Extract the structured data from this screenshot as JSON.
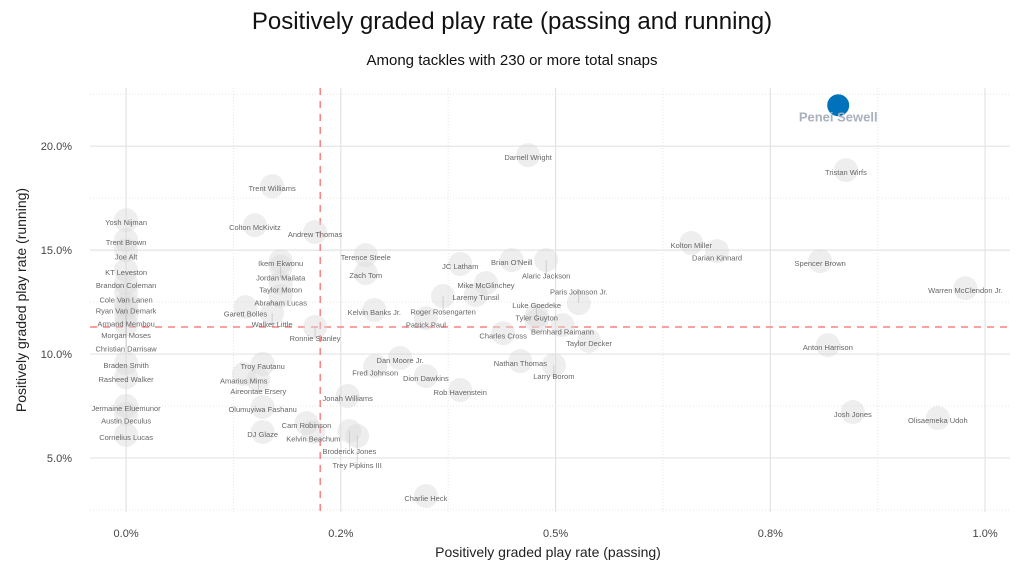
{
  "title": "Positively graded play rate (passing and running)",
  "subtitle": "Among tackles with 230 or more total snaps",
  "chart_data": {
    "type": "scatter",
    "title": "Positively graded play rate (passing and running)",
    "subtitle": "Among tackles with 230 or more total snaps",
    "xlabel": "Positively graded play rate (passing)",
    "ylabel": "Positively graded play rate (running)",
    "xlim": [
      -0.042,
      1.029
    ],
    "ylim": [
      2.4,
      22.8
    ],
    "x_ticks": [
      0,
      0.25,
      0.5,
      0.75,
      1.0
    ],
    "x_tick_labels": [
      "0.0%",
      "0.2%",
      "0.5%",
      "0.8%",
      "1.0%"
    ],
    "y_ticks": [
      5,
      10,
      15,
      20
    ],
    "y_tick_labels": [
      "5.0%",
      "10.0%",
      "15.0%",
      "20.0%"
    ],
    "grid": true,
    "reference_lines": {
      "x": 0.226,
      "y": 11.3,
      "color": "#ff8080",
      "style": "dashed"
    },
    "highlight_color": "#0072bb",
    "point_color": "#d9d9d9",
    "points": [
      {
        "name": "Penei Sewell",
        "x": 0.829,
        "y": 21.97,
        "highlight": true
      },
      {
        "name": "Tristan Wirfs",
        "x": 0.838,
        "y": 18.85
      },
      {
        "name": "Darnell Wright",
        "x": 0.468,
        "y": 19.57
      },
      {
        "name": "Trent Williams",
        "x": 0.17,
        "y": 18.08
      },
      {
        "name": "Yosh Nijman",
        "x": 0.0,
        "y": 16.44
      },
      {
        "name": "Colton McKivitz",
        "x": 0.15,
        "y": 16.2
      },
      {
        "name": "Andrew Thomas",
        "x": 0.22,
        "y": 15.87
      },
      {
        "name": "Trent Brown",
        "x": 0.0,
        "y": 15.48
      },
      {
        "name": "Joe Alt",
        "x": 0.0,
        "y": 15.0
      },
      {
        "name": "Kolton Miller",
        "x": 0.658,
        "y": 15.34
      },
      {
        "name": "Darian Kinnard",
        "x": 0.688,
        "y": 14.95
      },
      {
        "name": "Spencer Brown",
        "x": 0.808,
        "y": 14.47
      },
      {
        "name": "Warren McClendon Jr.",
        "x": 0.977,
        "y": 13.17
      },
      {
        "name": "Terence Steele",
        "x": 0.279,
        "y": 14.76
      },
      {
        "name": "Zach Tom",
        "x": 0.279,
        "y": 13.89
      },
      {
        "name": "Ikem Ekwonu",
        "x": 0.18,
        "y": 14.47
      },
      {
        "name": "Jordan Mailata",
        "x": 0.18,
        "y": 14.2
      },
      {
        "name": "Taylor Moton",
        "x": 0.18,
        "y": 13.41
      },
      {
        "name": "Abraham Lucas",
        "x": 0.18,
        "y": 12.79
      },
      {
        "name": "Garett Bolles",
        "x": 0.139,
        "y": 12.26
      },
      {
        "name": "Walker Little",
        "x": 0.17,
        "y": 11.97
      },
      {
        "name": "Ronnie Stanley",
        "x": 0.22,
        "y": 11.3
      },
      {
        "name": "Kelvin Banks Jr.",
        "x": 0.289,
        "y": 12.12
      },
      {
        "name": "JC Latham",
        "x": 0.389,
        "y": 14.33
      },
      {
        "name": "Brian O'Neill",
        "x": 0.449,
        "y": 14.52
      },
      {
        "name": "Alaric Jackson",
        "x": 0.489,
        "y": 14.52
      },
      {
        "name": "Mike McGlinchey",
        "x": 0.419,
        "y": 13.41
      },
      {
        "name": "Laremy Tunsil",
        "x": 0.407,
        "y": 12.84
      },
      {
        "name": "Roger Rosengarten",
        "x": 0.369,
        "y": 12.79
      },
      {
        "name": "Patrick Paul",
        "x": 0.349,
        "y": 11.73
      },
      {
        "name": "Charles Cross",
        "x": 0.439,
        "y": 11.0
      },
      {
        "name": "Tyler Guyton",
        "x": 0.478,
        "y": 11.85
      },
      {
        "name": "Luke Goedeke",
        "x": 0.478,
        "y": 11.6
      },
      {
        "name": "Paris Johnson Jr.",
        "x": 0.527,
        "y": 12.45
      },
      {
        "name": "Bernhard Raimann",
        "x": 0.508,
        "y": 11.39
      },
      {
        "name": "Taylor Decker",
        "x": 0.539,
        "y": 10.63
      },
      {
        "name": "Nathan Thomas",
        "x": 0.459,
        "y": 9.66
      },
      {
        "name": "Larry Borom",
        "x": 0.498,
        "y": 9.47
      },
      {
        "name": "Dan Moore Jr.",
        "x": 0.319,
        "y": 9.81
      },
      {
        "name": "Fred Johnson",
        "x": 0.29,
        "y": 9.42
      },
      {
        "name": "Dion Dawkins",
        "x": 0.349,
        "y": 8.94
      },
      {
        "name": "Rob Havenstein",
        "x": 0.389,
        "y": 8.27
      },
      {
        "name": "Jonah Williams",
        "x": 0.258,
        "y": 7.98
      },
      {
        "name": "Troy Fautanu",
        "x": 0.159,
        "y": 9.52
      },
      {
        "name": "Amarius Mims",
        "x": 0.137,
        "y": 9.04
      },
      {
        "name": "Aireontae Ersery",
        "x": 0.154,
        "y": 8.75
      },
      {
        "name": "Olumuyiwa Fashanu",
        "x": 0.159,
        "y": 7.45
      },
      {
        "name": "Cam Robinson",
        "x": 0.21,
        "y": 6.68
      },
      {
        "name": "Kelvin Beachum",
        "x": 0.218,
        "y": 6.25
      },
      {
        "name": "Broderick Jones",
        "x": 0.26,
        "y": 6.3
      },
      {
        "name": "Trey Pipkins III",
        "x": 0.269,
        "y": 6.06
      },
      {
        "name": "DJ Glaze",
        "x": 0.159,
        "y": 6.25
      },
      {
        "name": "Charlie Heck",
        "x": 0.349,
        "y": 3.17
      },
      {
        "name": "Anton Harrison",
        "x": 0.817,
        "y": 10.43
      },
      {
        "name": "Josh Jones",
        "x": 0.846,
        "y": 7.21
      },
      {
        "name": "Olisaemeka Udoh",
        "x": 0.945,
        "y": 6.92
      },
      {
        "name": "KT Leveston",
        "x": 0.0,
        "y": 14.04
      },
      {
        "name": "Brandon Coleman",
        "x": 0.0,
        "y": 13.41
      },
      {
        "name": "Cole Van Lanen",
        "x": 0.0,
        "y": 12.93
      },
      {
        "name": "Ryan Van Demark",
        "x": 0.0,
        "y": 12.4
      },
      {
        "name": "Armand Membou",
        "x": 0.0,
        "y": 12.21
      },
      {
        "name": "Morgan Moses",
        "x": 0.0,
        "y": 11.88
      },
      {
        "name": "Christian Darrisaw",
        "x": 0.0,
        "y": 11.44
      },
      {
        "name": "Braden Smith",
        "x": 0.0,
        "y": 9.57
      },
      {
        "name": "Rasheed Walker",
        "x": 0.0,
        "y": 8.89
      },
      {
        "name": "Jermaine Eluemunor",
        "x": 0.0,
        "y": 7.5
      },
      {
        "name": "Austin Deculus",
        "x": 0.0,
        "y": 7.12
      },
      {
        "name": "Cornelius Lucas",
        "x": 0.0,
        "y": 6.11
      }
    ]
  }
}
